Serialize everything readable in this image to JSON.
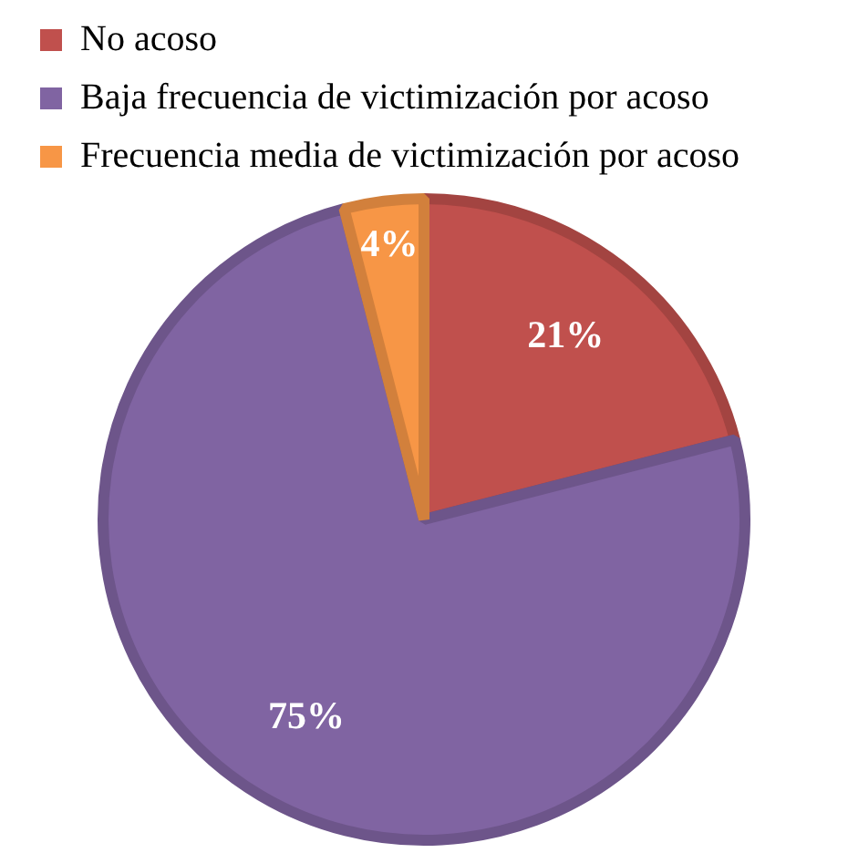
{
  "chart_data": {
    "type": "pie",
    "categories": [
      "No acoso",
      "Baja frecuencia de victimización por acoso",
      "Frecuencia media de victimización por acoso"
    ],
    "values": [
      21,
      75,
      4
    ],
    "colors": [
      "#c0504d",
      "#8064a2",
      "#f79646"
    ],
    "value_labels": [
      "21%",
      "75%",
      "4%"
    ],
    "legend": "top"
  }
}
